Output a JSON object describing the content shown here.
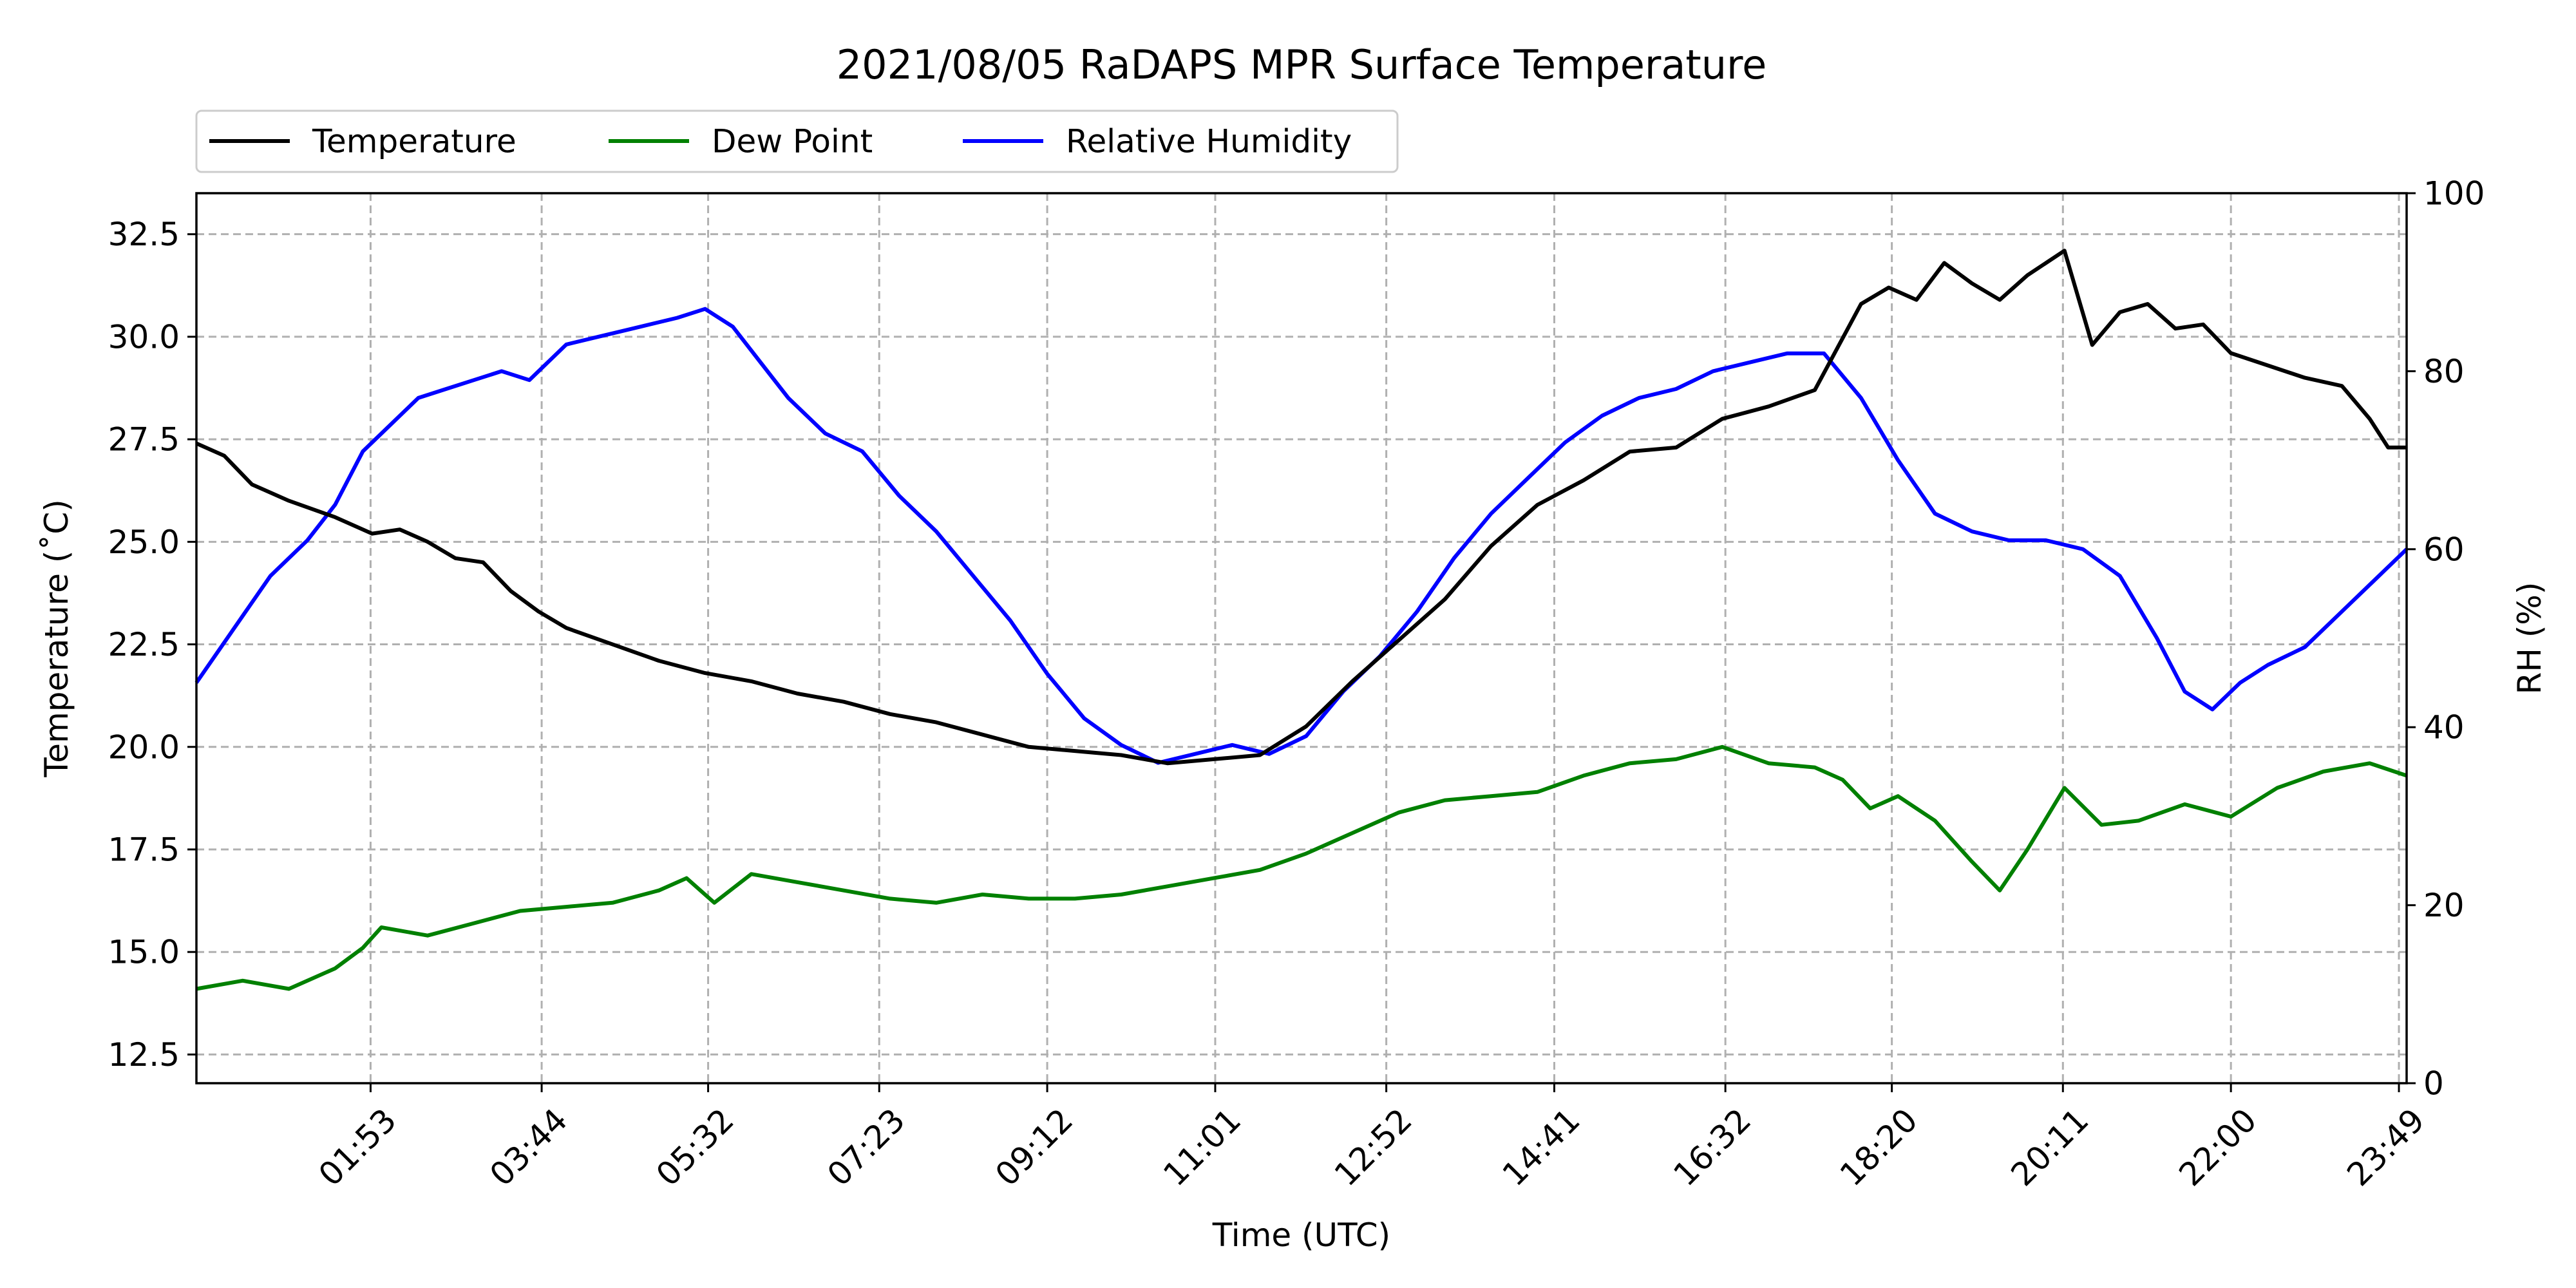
{
  "chart_data": {
    "type": "line",
    "title": "2021/08/05 RaDAPS MPR Surface Temperature",
    "xlabel": "Time (UTC)",
    "ylabel": "Temperature ($^\\circ$C)",
    "ylabel_display": "Temperature (˚C)",
    "y2label": "RH (%)",
    "xlim": [
      0.0,
      23.9
    ],
    "ylim": [
      11.8,
      33.5
    ],
    "y2lim": [
      0,
      100
    ],
    "grid": true,
    "legend_position": "top-left, above plot",
    "x_tick_labels": [
      "01:53",
      "03:44",
      "05:32",
      "07:23",
      "09:12",
      "11:01",
      "12:52",
      "14:41",
      "16:32",
      "18:20",
      "20:11",
      "22:00",
      "23:49"
    ],
    "y_ticks": [
      12.5,
      15.0,
      17.5,
      20.0,
      22.5,
      25.0,
      27.5,
      30.0,
      32.5
    ],
    "y_tick_labels": [
      "12.5",
      "15.0",
      "17.5",
      "20.0",
      "22.5",
      "25.0",
      "27.5",
      "30.0",
      "32.5"
    ],
    "y2_ticks": [
      0,
      20,
      40,
      60,
      80,
      100
    ],
    "y2_tick_labels": [
      "0",
      "20",
      "40",
      "60",
      "80",
      "100"
    ],
    "series": [
      {
        "name": "Temperature",
        "axis": "left",
        "color": "#000000",
        "x": [
          0.0,
          0.3,
          0.6,
          1.0,
          1.5,
          1.9,
          2.2,
          2.5,
          2.8,
          3.1,
          3.4,
          3.7,
          4.0,
          4.5,
          5.0,
          5.5,
          6.0,
          6.5,
          7.0,
          7.5,
          8.0,
          8.5,
          9.0,
          9.5,
          10.0,
          10.5,
          11.0,
          11.5,
          12.0,
          12.5,
          13.0,
          13.5,
          14.0,
          14.5,
          15.0,
          15.5,
          16.0,
          16.5,
          17.0,
          17.5,
          18.0,
          18.3,
          18.6,
          18.9,
          19.2,
          19.5,
          19.8,
          20.2,
          20.5,
          20.8,
          21.1,
          21.4,
          21.7,
          22.0,
          22.4,
          22.8,
          23.2,
          23.5,
          23.7,
          23.9
        ],
        "y": [
          27.4,
          27.1,
          26.4,
          26.0,
          25.6,
          25.2,
          25.3,
          25.0,
          24.6,
          24.5,
          23.8,
          23.3,
          22.9,
          22.5,
          22.1,
          21.8,
          21.6,
          21.3,
          21.1,
          20.8,
          20.6,
          20.3,
          20.0,
          19.9,
          19.8,
          19.6,
          19.7,
          19.8,
          20.5,
          21.6,
          22.6,
          23.6,
          24.9,
          25.9,
          26.5,
          27.2,
          27.3,
          28.0,
          28.3,
          28.7,
          30.8,
          31.2,
          30.9,
          31.8,
          31.3,
          30.9,
          31.5,
          32.1,
          29.8,
          30.6,
          30.8,
          30.2,
          30.3,
          29.6,
          29.3,
          29.0,
          28.8,
          28.0,
          27.3,
          27.3
        ]
      },
      {
        "name": "Dew Point",
        "axis": "left",
        "color": "#008000",
        "x": [
          0.0,
          0.5,
          1.0,
          1.5,
          1.8,
          2.0,
          2.5,
          3.0,
          3.5,
          4.0,
          4.5,
          5.0,
          5.3,
          5.6,
          6.0,
          6.5,
          7.0,
          7.5,
          8.0,
          8.5,
          9.0,
          9.5,
          10.0,
          10.5,
          11.0,
          11.5,
          12.0,
          12.5,
          13.0,
          13.5,
          14.0,
          14.5,
          15.0,
          15.5,
          16.0,
          16.5,
          17.0,
          17.5,
          17.8,
          18.1,
          18.4,
          18.8,
          19.2,
          19.5,
          19.8,
          20.2,
          20.6,
          21.0,
          21.5,
          22.0,
          22.5,
          23.0,
          23.5,
          23.9
        ],
        "y": [
          14.1,
          14.3,
          14.1,
          14.6,
          15.1,
          15.6,
          15.4,
          15.7,
          16.0,
          16.1,
          16.2,
          16.5,
          16.8,
          16.2,
          16.9,
          16.7,
          16.5,
          16.3,
          16.2,
          16.4,
          16.3,
          16.3,
          16.4,
          16.6,
          16.8,
          17.0,
          17.4,
          17.9,
          18.4,
          18.7,
          18.8,
          18.9,
          19.3,
          19.6,
          19.7,
          20.0,
          19.6,
          19.5,
          19.2,
          18.5,
          18.8,
          18.2,
          17.2,
          16.5,
          17.5,
          19.0,
          18.1,
          18.2,
          18.6,
          18.3,
          19.0,
          19.4,
          19.6,
          19.3
        ]
      },
      {
        "name": "Relative Humidity",
        "axis": "right",
        "color": "#0000ff",
        "x": [
          0.0,
          0.4,
          0.8,
          1.2,
          1.5,
          1.8,
          2.1,
          2.4,
          2.7,
          3.0,
          3.3,
          3.6,
          4.0,
          4.4,
          4.8,
          5.2,
          5.5,
          5.8,
          6.1,
          6.4,
          6.8,
          7.2,
          7.6,
          8.0,
          8.4,
          8.8,
          9.2,
          9.6,
          10.0,
          10.4,
          10.8,
          11.2,
          11.6,
          12.0,
          12.4,
          12.8,
          13.2,
          13.6,
          14.0,
          14.4,
          14.8,
          15.2,
          15.6,
          16.0,
          16.4,
          16.8,
          17.2,
          17.6,
          18.0,
          18.4,
          18.8,
          19.2,
          19.6,
          20.0,
          20.4,
          20.8,
          21.2,
          21.5,
          21.8,
          22.1,
          22.4,
          22.8,
          23.2,
          23.6,
          23.9
        ],
        "y": [
          45,
          51,
          57,
          61,
          65,
          71,
          74,
          77,
          78,
          79,
          80,
          79,
          83,
          84,
          85,
          86,
          87,
          85,
          81,
          77,
          73,
          71,
          66,
          62,
          57,
          52,
          46,
          41,
          38,
          36,
          37,
          38,
          37,
          39,
          44,
          48,
          53,
          59,
          64,
          68,
          72,
          75,
          77,
          78,
          80,
          81,
          82,
          82,
          77,
          70,
          64,
          62,
          61,
          61,
          60,
          57,
          50,
          44,
          42,
          45,
          47,
          49,
          53,
          57,
          60
        ]
      }
    ]
  }
}
